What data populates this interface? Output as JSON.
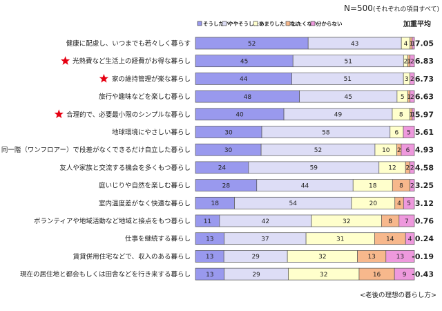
{
  "header": {
    "n_label": "N=500",
    "n_note": "(それぞれの項目すべて)",
    "avg_header": "加重平均",
    "footnote": "<老後の理想の暮らし方>"
  },
  "chart_data": {
    "type": "bar",
    "orientation": "horizontal",
    "stacked": true,
    "percent_axis": [
      0,
      100
    ],
    "legend_position": "top",
    "series": [
      {
        "name": "そうしたい",
        "color": "#9999ee"
      },
      {
        "name": "ややそうしたい",
        "color": "#ddddf6"
      },
      {
        "name": "あまりしたくない",
        "color": "#ffffcc"
      },
      {
        "name": "したくない",
        "color": "#f7b88c"
      },
      {
        "name": "分からない",
        "color": "#ee99dd"
      }
    ],
    "categories": [
      "健康に配慮し、いつまでも若々しく暮らす",
      "光熱費など生活上の経費がお得な暮らし",
      "家の維持管理が楽な暮らし",
      "旅行や趣味などを楽しむ暮らし",
      "合理的で、必要最小限のシンプルな暮らし",
      "地球環境にやさしい暮らし",
      "同一階（ワンフロアー）で段差がなくできるだけ自立した暮らし",
      "友人や家族と交流する機会を多くもつ暮らし",
      "庭いじりや自然を楽しむ暮らし",
      "室内温度差がなく快適な暮らし",
      "ボランティアや地域活動など地域と接点をもつ暮らし",
      "仕事を継続する暮らし",
      "賃貸併用住宅などで、収入のある暮らし",
      "現在の居住地と都会もしくは田舎などを行き来する暮らし"
    ],
    "starred": [
      false,
      true,
      true,
      false,
      true,
      false,
      false,
      false,
      false,
      false,
      false,
      false,
      false,
      false
    ],
    "values": [
      [
        52,
        43,
        4,
        1,
        1
      ],
      [
        45,
        51,
        2,
        1,
        2
      ],
      [
        44,
        51,
        3,
        0,
        2
      ],
      [
        48,
        45,
        5,
        1,
        2
      ],
      [
        40,
        49,
        8,
        1,
        1
      ],
      [
        30,
        58,
        6,
        0,
        5
      ],
      [
        30,
        52,
        10,
        2,
        6
      ],
      [
        24,
        59,
        12,
        2,
        2
      ],
      [
        28,
        44,
        18,
        8,
        2
      ],
      [
        18,
        54,
        20,
        4,
        5
      ],
      [
        11,
        42,
        32,
        8,
        7
      ],
      [
        13,
        37,
        31,
        14,
        4
      ],
      [
        13,
        29,
        32,
        13,
        13
      ],
      [
        13,
        29,
        32,
        16,
        9
      ]
    ],
    "weighted_average": [
      "7.05",
      "6.83",
      "6.73",
      "6.63",
      "5.97",
      "5.61",
      "4.93",
      "4.58",
      "3.25",
      "3.12",
      "0.76",
      "0.24",
      "-0.19",
      "-0.43"
    ]
  }
}
